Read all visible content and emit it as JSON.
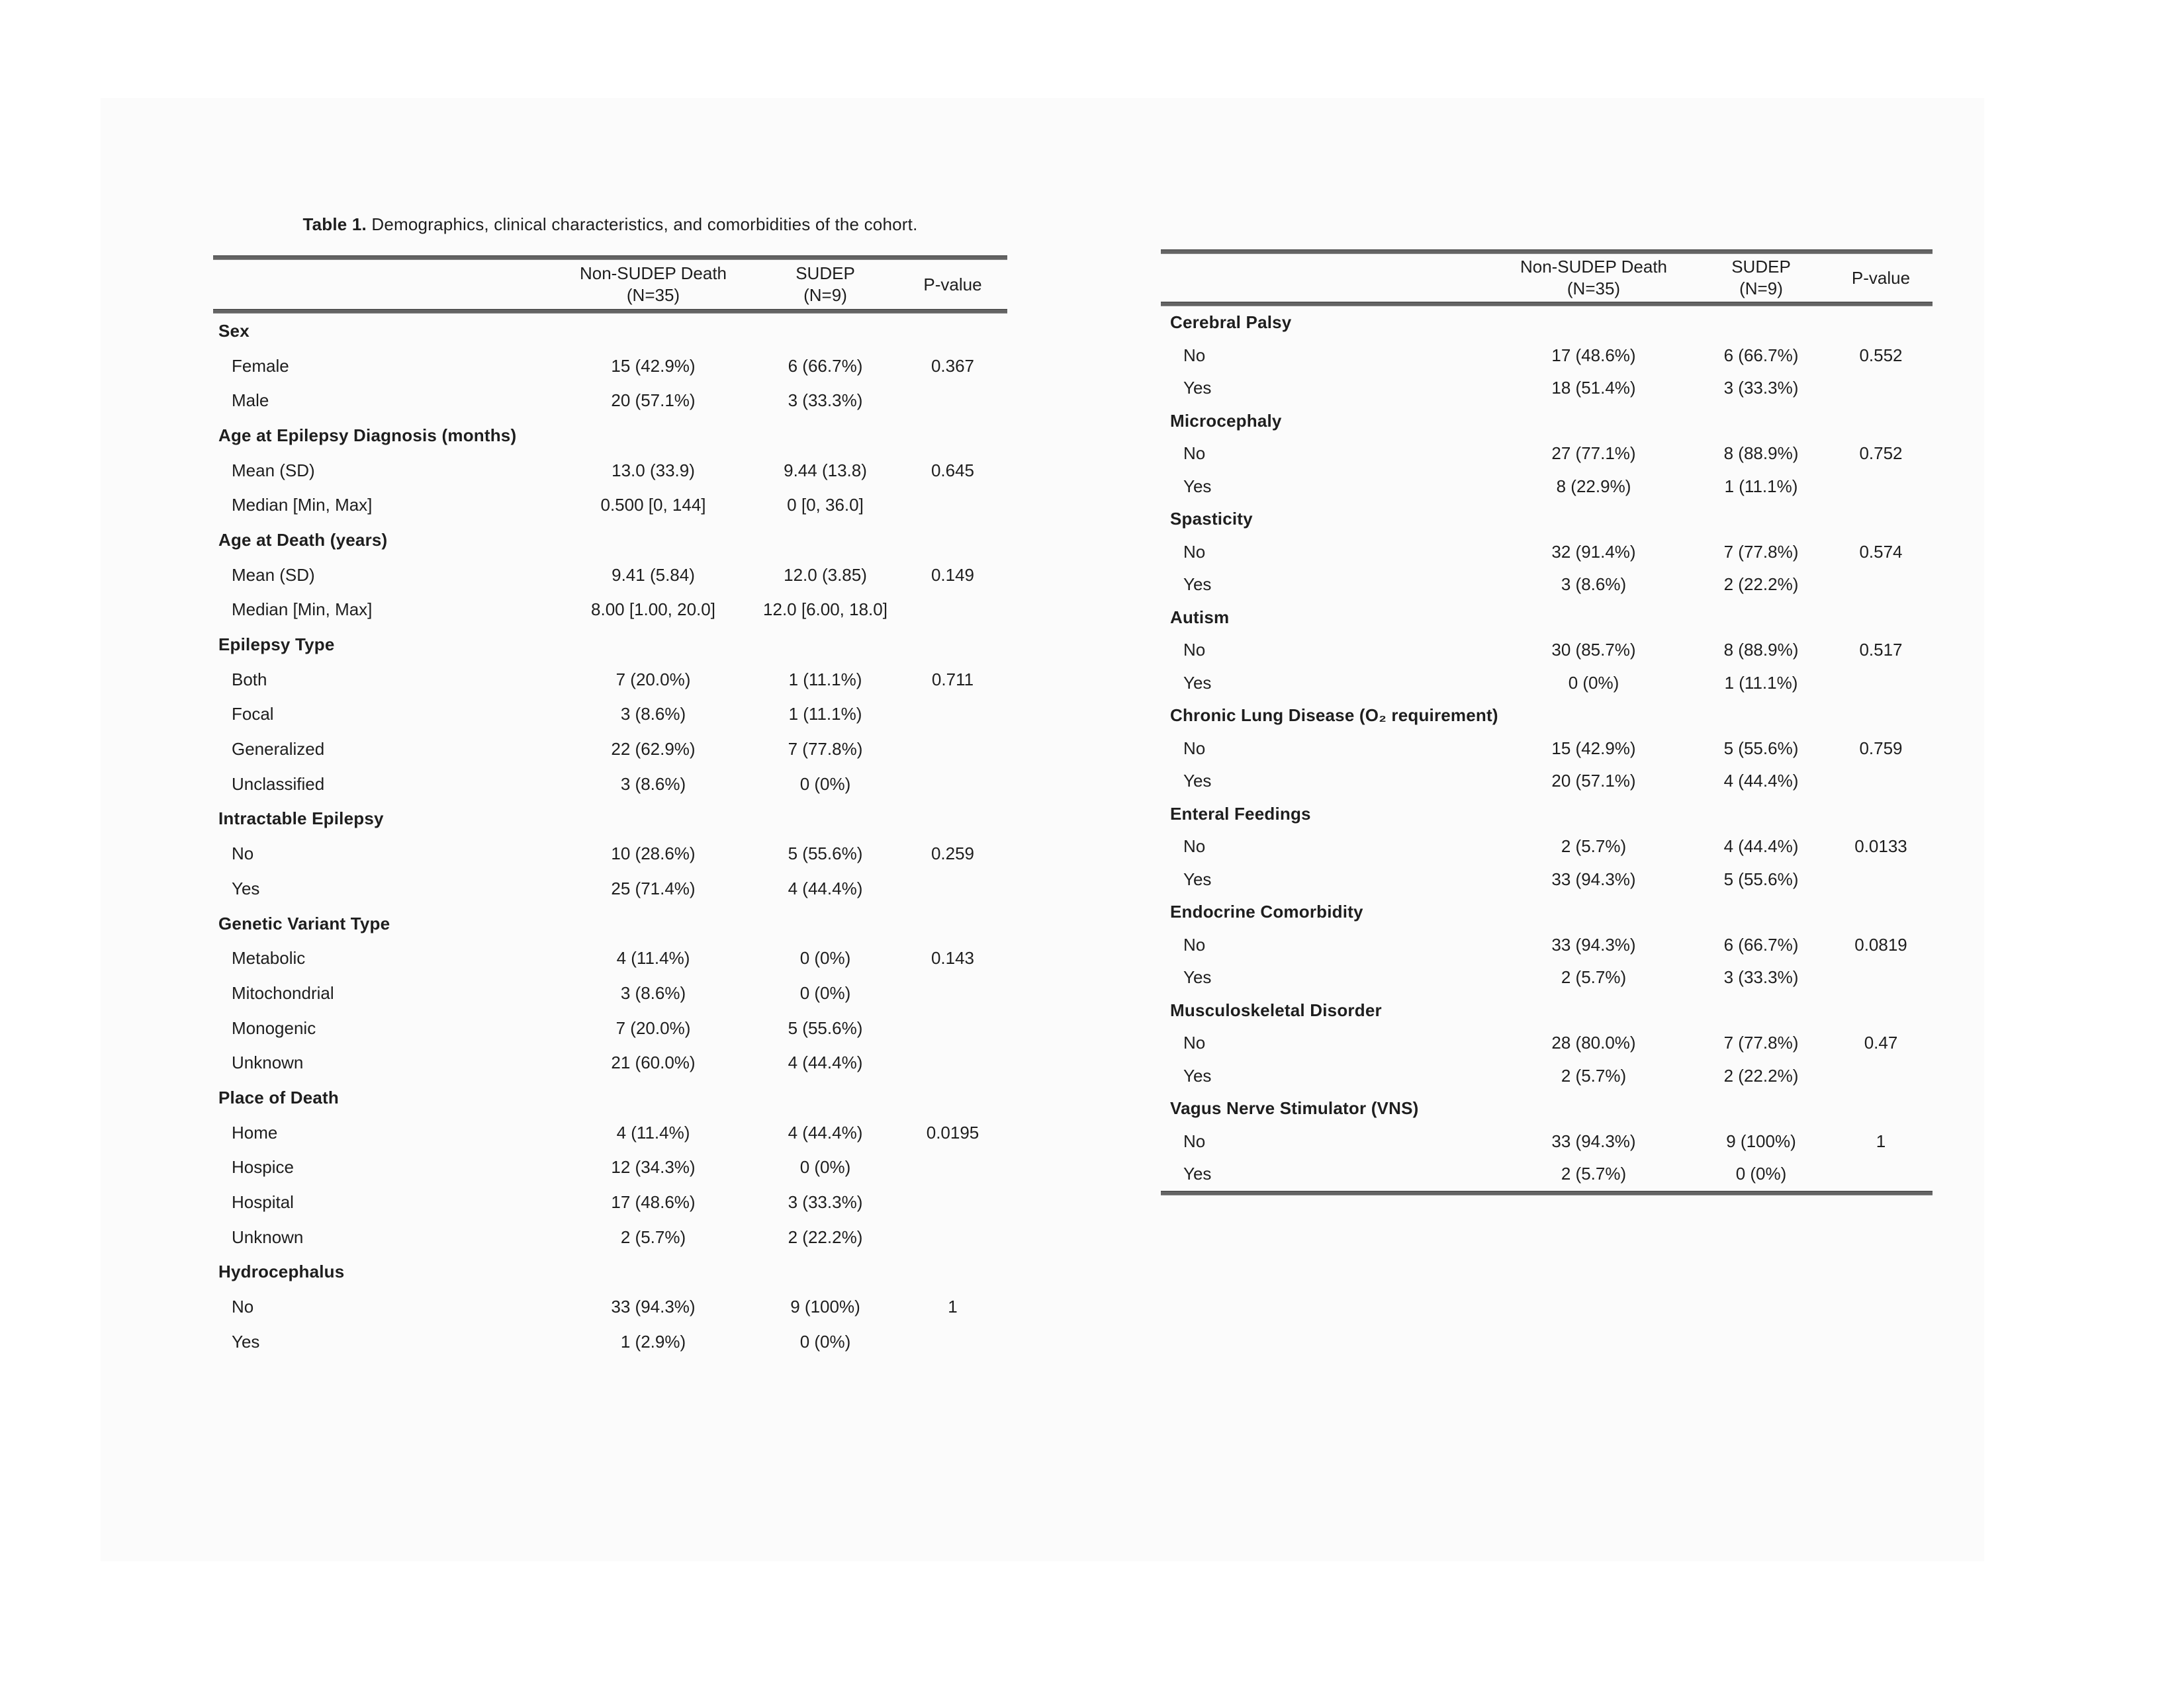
{
  "title": {
    "prefix": "Table 1.",
    "rest": " Demographics, clinical characteristics, and comorbidities of the cohort."
  },
  "columns": [
    {
      "line1": "Non-SUDEP Death",
      "line2": "(N=35)"
    },
    {
      "line1": "SUDEP",
      "line2": "(N=9)"
    },
    {
      "line1": "P-value",
      "line2": ""
    }
  ],
  "left_table": {
    "sections": [
      {
        "header": "Sex",
        "rows": [
          {
            "label": "Female",
            "non_sudep": "15 (42.9%)",
            "sudep": "6 (66.7%)",
            "p_value": "0.367"
          },
          {
            "label": "Male",
            "non_sudep": "20 (57.1%)",
            "sudep": "3 (33.3%)",
            "p_value": ""
          }
        ]
      },
      {
        "header": "Age at Epilepsy Diagnosis (months)",
        "rows": [
          {
            "label": "Mean (SD)",
            "non_sudep": "13.0 (33.9)",
            "sudep": "9.44 (13.8)",
            "p_value": "0.645"
          },
          {
            "label": "Median [Min, Max]",
            "non_sudep": "0.500 [0, 144]",
            "sudep": "0 [0, 36.0]",
            "p_value": ""
          }
        ]
      },
      {
        "header": "Age at Death (years)",
        "rows": [
          {
            "label": "Mean (SD)",
            "non_sudep": "9.41 (5.84)",
            "sudep": "12.0 (3.85)",
            "p_value": "0.149"
          },
          {
            "label": "Median [Min, Max]",
            "non_sudep": "8.00 [1.00, 20.0]",
            "sudep": "12.0 [6.00, 18.0]",
            "p_value": ""
          }
        ]
      },
      {
        "header": "Epilepsy Type",
        "rows": [
          {
            "label": "Both",
            "non_sudep": "7 (20.0%)",
            "sudep": "1 (11.1%)",
            "p_value": "0.711"
          },
          {
            "label": "Focal",
            "non_sudep": "3 (8.6%)",
            "sudep": "1 (11.1%)",
            "p_value": ""
          },
          {
            "label": "Generalized",
            "non_sudep": "22 (62.9%)",
            "sudep": "7 (77.8%)",
            "p_value": ""
          },
          {
            "label": "Unclassified",
            "non_sudep": "3 (8.6%)",
            "sudep": "0 (0%)",
            "p_value": ""
          }
        ]
      },
      {
        "header": "Intractable Epilepsy",
        "rows": [
          {
            "label": "No",
            "non_sudep": "10 (28.6%)",
            "sudep": "5 (55.6%)",
            "p_value": "0.259"
          },
          {
            "label": "Yes",
            "non_sudep": "25 (71.4%)",
            "sudep": "4 (44.4%)",
            "p_value": ""
          }
        ]
      },
      {
        "header": "Genetic Variant Type",
        "rows": [
          {
            "label": "Metabolic",
            "non_sudep": "4 (11.4%)",
            "sudep": "0 (0%)",
            "p_value": "0.143"
          },
          {
            "label": "Mitochondrial",
            "non_sudep": "3 (8.6%)",
            "sudep": "0 (0%)",
            "p_value": ""
          },
          {
            "label": "Monogenic",
            "non_sudep": "7 (20.0%)",
            "sudep": "5 (55.6%)",
            "p_value": ""
          },
          {
            "label": "Unknown",
            "non_sudep": "21 (60.0%)",
            "sudep": "4 (44.4%)",
            "p_value": ""
          }
        ]
      },
      {
        "header": "Place of Death",
        "rows": [
          {
            "label": "Home",
            "non_sudep": "4 (11.4%)",
            "sudep": "4 (44.4%)",
            "p_value": "0.0195"
          },
          {
            "label": "Hospice",
            "non_sudep": "12 (34.3%)",
            "sudep": "0 (0%)",
            "p_value": ""
          },
          {
            "label": "Hospital",
            "non_sudep": "17 (48.6%)",
            "sudep": "3 (33.3%)",
            "p_value": ""
          },
          {
            "label": "Unknown",
            "non_sudep": "2 (5.7%)",
            "sudep": "2 (22.2%)",
            "p_value": ""
          }
        ]
      },
      {
        "header": "Hydrocephalus",
        "rows": [
          {
            "label": "No",
            "non_sudep": "33 (94.3%)",
            "sudep": "9 (100%)",
            "p_value": "1"
          },
          {
            "label": "Yes",
            "non_sudep": "1 (2.9%)",
            "sudep": "0 (0%)",
            "p_value": ""
          }
        ]
      }
    ]
  },
  "right_table": {
    "sections": [
      {
        "header": "Cerebral Palsy",
        "rows": [
          {
            "label": "No",
            "non_sudep": "17 (48.6%)",
            "sudep": "6 (66.7%)",
            "p_value": "0.552"
          },
          {
            "label": "Yes",
            "non_sudep": "18 (51.4%)",
            "sudep": "3 (33.3%)",
            "p_value": ""
          }
        ]
      },
      {
        "header": "Microcephaly",
        "rows": [
          {
            "label": "No",
            "non_sudep": "27 (77.1%)",
            "sudep": "8 (88.9%)",
            "p_value": "0.752"
          },
          {
            "label": "Yes",
            "non_sudep": "8 (22.9%)",
            "sudep": "1 (11.1%)",
            "p_value": ""
          }
        ]
      },
      {
        "header": "Spasticity",
        "rows": [
          {
            "label": "No",
            "non_sudep": "32 (91.4%)",
            "sudep": "7 (77.8%)",
            "p_value": "0.574"
          },
          {
            "label": "Yes",
            "non_sudep": "3 (8.6%)",
            "sudep": "2 (22.2%)",
            "p_value": ""
          }
        ]
      },
      {
        "header": "Autism",
        "rows": [
          {
            "label": "No",
            "non_sudep": "30 (85.7%)",
            "sudep": "8 (88.9%)",
            "p_value": "0.517"
          },
          {
            "label": "Yes",
            "non_sudep": "0 (0%)",
            "sudep": "1 (11.1%)",
            "p_value": ""
          }
        ]
      },
      {
        "header": "Chronic Lung Disease (O₂ requirement)",
        "rows": [
          {
            "label": "No",
            "non_sudep": "15 (42.9%)",
            "sudep": "5 (55.6%)",
            "p_value": "0.759"
          },
          {
            "label": "Yes",
            "non_sudep": "20 (57.1%)",
            "sudep": "4 (44.4%)",
            "p_value": ""
          }
        ]
      },
      {
        "header": "Enteral Feedings",
        "rows": [
          {
            "label": "No",
            "non_sudep": "2 (5.7%)",
            "sudep": "4 (44.4%)",
            "p_value": "0.0133"
          },
          {
            "label": "Yes",
            "non_sudep": "33 (94.3%)",
            "sudep": "5 (55.6%)",
            "p_value": ""
          }
        ]
      },
      {
        "header": "Endocrine Comorbidity",
        "rows": [
          {
            "label": "No",
            "non_sudep": "33 (94.3%)",
            "sudep": "6 (66.7%)",
            "p_value": "0.0819"
          },
          {
            "label": "Yes",
            "non_sudep": "2 (5.7%)",
            "sudep": "3 (33.3%)",
            "p_value": ""
          }
        ]
      },
      {
        "header": "Musculoskeletal Disorder",
        "rows": [
          {
            "label": "No",
            "non_sudep": "28 (80.0%)",
            "sudep": "7 (77.8%)",
            "p_value": "0.47"
          },
          {
            "label": "Yes",
            "non_sudep": "2 (5.7%)",
            "sudep": "2 (22.2%)",
            "p_value": ""
          }
        ]
      },
      {
        "header": "Vagus Nerve Stimulator (VNS)",
        "rows": [
          {
            "label": "No",
            "non_sudep": "33 (94.3%)",
            "sudep": "9 (100%)",
            "p_value": "1"
          },
          {
            "label": "Yes",
            "non_sudep": "2 (5.7%)",
            "sudep": "0 (0%)",
            "p_value": ""
          }
        ]
      }
    ]
  }
}
